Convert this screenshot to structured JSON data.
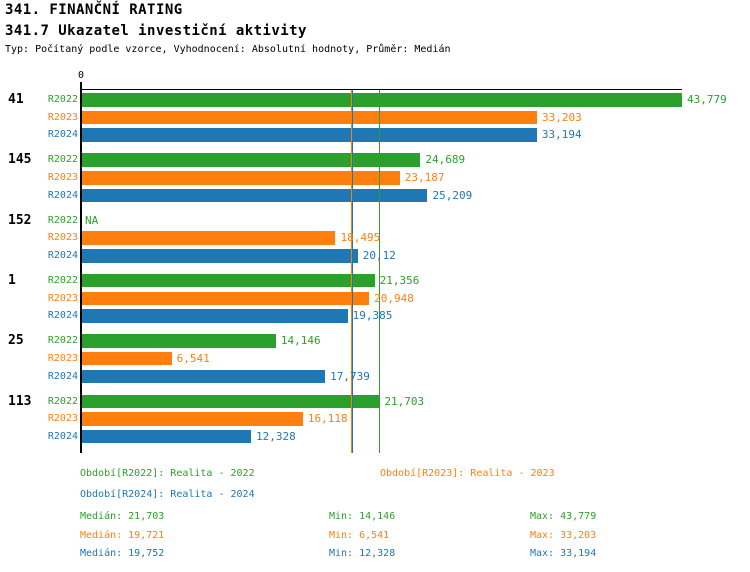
{
  "header": {
    "title1": "341. FINANČNÍ RATING",
    "title2": "341.7 Ukazatel investiční aktivity",
    "meta": "Typ: Počítaný podle vzorce, Vyhodnocení: Absolutní hodnoty, Průměr: Medián"
  },
  "chart_data": {
    "type": "bar",
    "orientation": "horizontal",
    "title": "341.7 Ukazatel investiční aktivity",
    "x_axis": {
      "zero_label": "0",
      "max": 43.779,
      "gridlines": false
    },
    "series": [
      {
        "name": "R2022",
        "color": "#2CA02C"
      },
      {
        "name": "R2023",
        "color": "#FF7F0E"
      },
      {
        "name": "R2024",
        "color": "#1F77B4"
      }
    ],
    "na_color": "#2CA02C",
    "groups": [
      {
        "label": "41",
        "bars": [
          {
            "series": "R2022",
            "value": 43.779,
            "display": "43,779"
          },
          {
            "series": "R2023",
            "value": 33.203,
            "display": "33,203"
          },
          {
            "series": "R2024",
            "value": 33.194,
            "display": "33,194"
          }
        ]
      },
      {
        "label": "145",
        "bars": [
          {
            "series": "R2022",
            "value": 24.689,
            "display": "24,689"
          },
          {
            "series": "R2023",
            "value": 23.187,
            "display": "23,187"
          },
          {
            "series": "R2024",
            "value": 25.209,
            "display": "25,209"
          }
        ]
      },
      {
        "label": "152",
        "bars": [
          {
            "series": "R2022",
            "value": null,
            "display": "NA"
          },
          {
            "series": "R2023",
            "value": 18.495,
            "display": "18,495"
          },
          {
            "series": "R2024",
            "value": 20.12,
            "display": "20,12"
          }
        ]
      },
      {
        "label": "1",
        "bars": [
          {
            "series": "R2022",
            "value": 21.356,
            "display": "21,356"
          },
          {
            "series": "R2023",
            "value": 20.948,
            "display": "20,948"
          },
          {
            "series": "R2024",
            "value": 19.385,
            "display": "19,385"
          }
        ]
      },
      {
        "label": "25",
        "bars": [
          {
            "series": "R2022",
            "value": 14.146,
            "display": "14,146"
          },
          {
            "series": "R2023",
            "value": 6.541,
            "display": "6,541"
          },
          {
            "series": "R2024",
            "value": 17.739,
            "display": "17,739"
          }
        ]
      },
      {
        "label": "113",
        "bars": [
          {
            "series": "R2022",
            "value": 21.703,
            "display": "21,703"
          },
          {
            "series": "R2023",
            "value": 16.118,
            "display": "16,118"
          },
          {
            "series": "R2024",
            "value": 12.328,
            "display": "12,328"
          }
        ]
      }
    ],
    "reference_lines": [
      {
        "series": "R2023",
        "value": 19.721,
        "color": "#FF7F0E"
      },
      {
        "series": "R2024",
        "value": 19.752,
        "color": "#1F77B4"
      },
      {
        "series": "R2022",
        "value": 21.703,
        "color": "#2CA02C"
      }
    ],
    "summary": [
      {
        "series": "R2022",
        "median": 21.703,
        "min": 14.146,
        "max": 43.779
      },
      {
        "series": "R2023",
        "median": 19.721,
        "min": 6.541,
        "max": 33.203
      },
      {
        "series": "R2024",
        "median": 19.752,
        "min": 12.328,
        "max": 33.194
      }
    ]
  },
  "legend": [
    {
      "label": "Období[R2022]: Realita - 2022",
      "color": "#2CA02C"
    },
    {
      "label": "Období[R2023]: Realita - 2023",
      "color": "#FF7F0E"
    },
    {
      "label": "Období[R2024]: Realita - 2024",
      "color": "#1F77B4"
    }
  ],
  "stats_rows": [
    {
      "color": "#2CA02C",
      "median": "Medián: 21,703",
      "min": "Min: 14,146",
      "max": "Max: 43,779"
    },
    {
      "color": "#FF7F0E",
      "median": "Medián: 19,721",
      "min": "Min: 6,541",
      "max": "Max: 33,203"
    },
    {
      "color": "#1F77B4",
      "median": "Medián: 19,752",
      "min": "Min: 12,328",
      "max": "Max: 33,194"
    }
  ]
}
